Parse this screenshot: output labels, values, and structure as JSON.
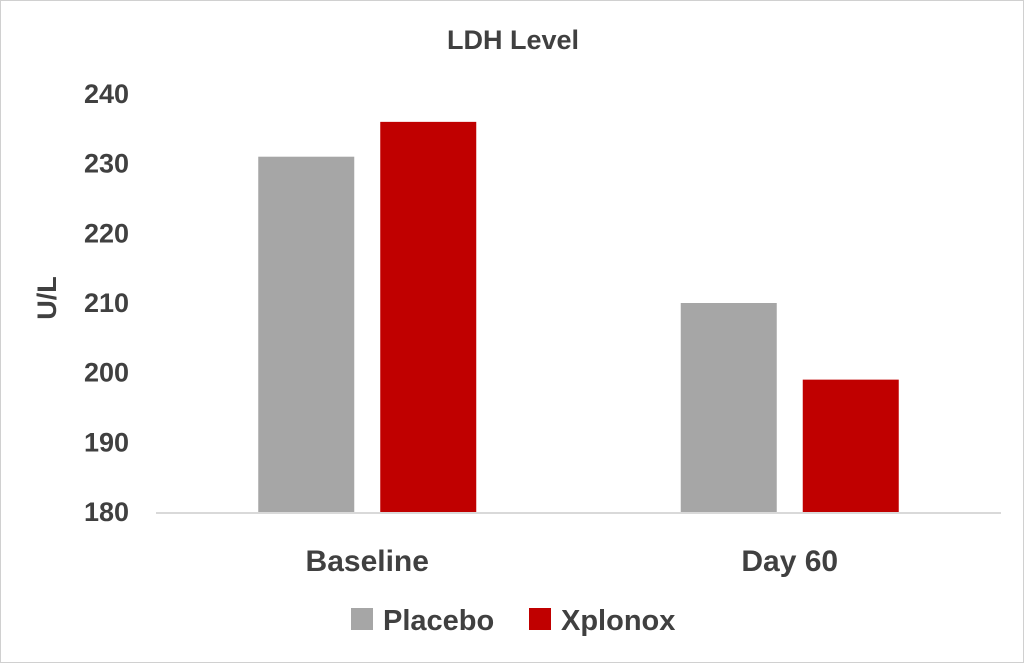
{
  "chart_data": {
    "type": "bar",
    "title": "LDH Level",
    "xlabel": "",
    "ylabel": "U/L",
    "categories": [
      "Baseline",
      "Day 60"
    ],
    "series": [
      {
        "name": "Placebo",
        "values": [
          231,
          210
        ],
        "color": "#a6a6a6"
      },
      {
        "name": "Xplonox",
        "values": [
          236,
          199
        ],
        "color": "#c00000"
      }
    ],
    "ylim": [
      180,
      240
    ],
    "yticks": [
      180,
      190,
      200,
      210,
      220,
      230,
      240
    ],
    "grid": false,
    "legend_position": "bottom"
  }
}
